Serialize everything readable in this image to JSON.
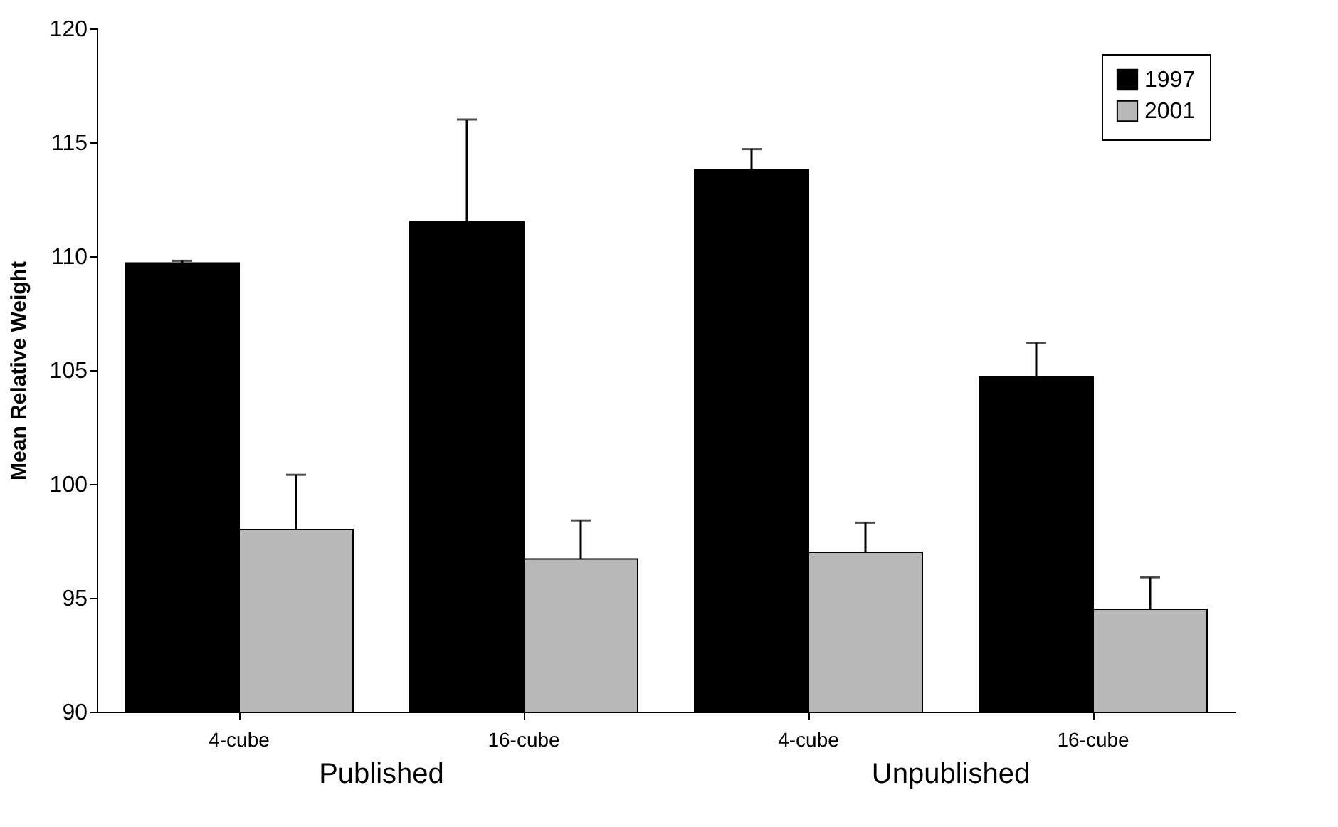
{
  "chart_data": {
    "type": "bar",
    "ylabel": "Mean Relative Weight",
    "categories": [
      "4-cube",
      "16-cube",
      "4-cube",
      "16-cube"
    ],
    "series": [
      {
        "name": "1997",
        "color": "#000000",
        "values": [
          109.7,
          111.5,
          113.8,
          104.7
        ],
        "errors": [
          [
            109.7,
            109.8
          ],
          [
            111.5,
            116.0
          ],
          [
            113.8,
            114.7
          ],
          [
            104.7,
            106.2
          ]
        ]
      },
      {
        "name": "2001",
        "color": "#b8b8b8",
        "values": [
          98.0,
          96.7,
          97.0,
          94.5
        ],
        "errors": [
          [
            98.0,
            100.4
          ],
          [
            96.7,
            98.4
          ],
          [
            97.0,
            98.3
          ],
          [
            94.5,
            95.9
          ]
        ]
      }
    ],
    "annotations": [
      "Published",
      "Unpublished"
    ],
    "ylim": [
      90,
      120
    ],
    "yticks": [
      90,
      95,
      100,
      105,
      110,
      115,
      120
    ],
    "grid": false,
    "legend": "top right"
  }
}
